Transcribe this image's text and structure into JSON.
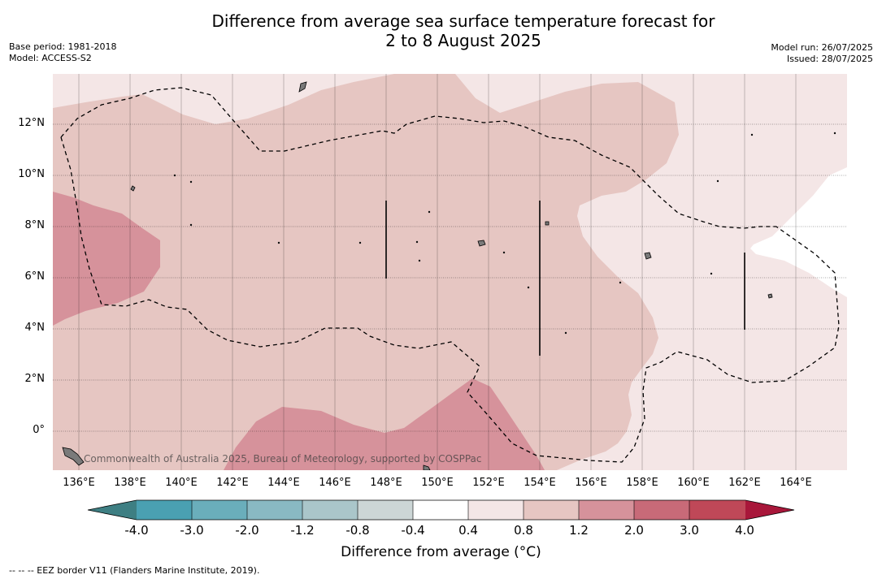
{
  "title": {
    "line1": "Difference from average sea surface temperature forecast for",
    "line2": "2 to 8 August 2025"
  },
  "meta_left": {
    "base_period": "Base period: 1981-2018",
    "model": "Model: ACCESS-S2"
  },
  "meta_right": {
    "model_run": "Model run: 26/07/2025",
    "issued": "Issued: 28/07/2025"
  },
  "map": {
    "longitude_labels": [
      "136°E",
      "138°E",
      "140°E",
      "142°E",
      "144°E",
      "146°E",
      "148°E",
      "150°E",
      "152°E",
      "154°E",
      "156°E",
      "158°E",
      "160°E",
      "162°E",
      "164°E"
    ],
    "latitude_labels": [
      "12°N",
      "10°N",
      "8°N",
      "6°N",
      "4°N",
      "2°N",
      "0°"
    ],
    "credit": "Commonwealth of Australia 2025, Bureau of Meteorology, supported by COSPPac",
    "colors": {
      "band_0_4_0_8": "#f4e6e6",
      "band_0_8_1_2": "#e6c6c2",
      "band_1_2_2_0": "#d6929b",
      "band_2_0_3_0": "#c86a78",
      "land": "#7a7a7a",
      "eez_line": "#000000"
    }
  },
  "colorbar": {
    "tick_labels": [
      "-4.0",
      "-3.0",
      "-2.0",
      "-1.2",
      "-0.8",
      "-0.4",
      "0.4",
      "0.8",
      "1.2",
      "2.0",
      "3.0",
      "4.0"
    ],
    "under_color": "#3e7f83",
    "over_color": "#a8173a",
    "colors": [
      "#4aa0b2",
      "#6aaebb",
      "#89b9c3",
      "#aac6ca",
      "#ccd6d6",
      "#ffffff",
      "#f4e6e6",
      "#e6c6c2",
      "#d6929b",
      "#c86a78",
      "#bf4858"
    ],
    "title": "Difference from average (°C)"
  },
  "footnote": "-- -- -- EEZ border V11 (Flanders Marine Institute, 2019)."
}
